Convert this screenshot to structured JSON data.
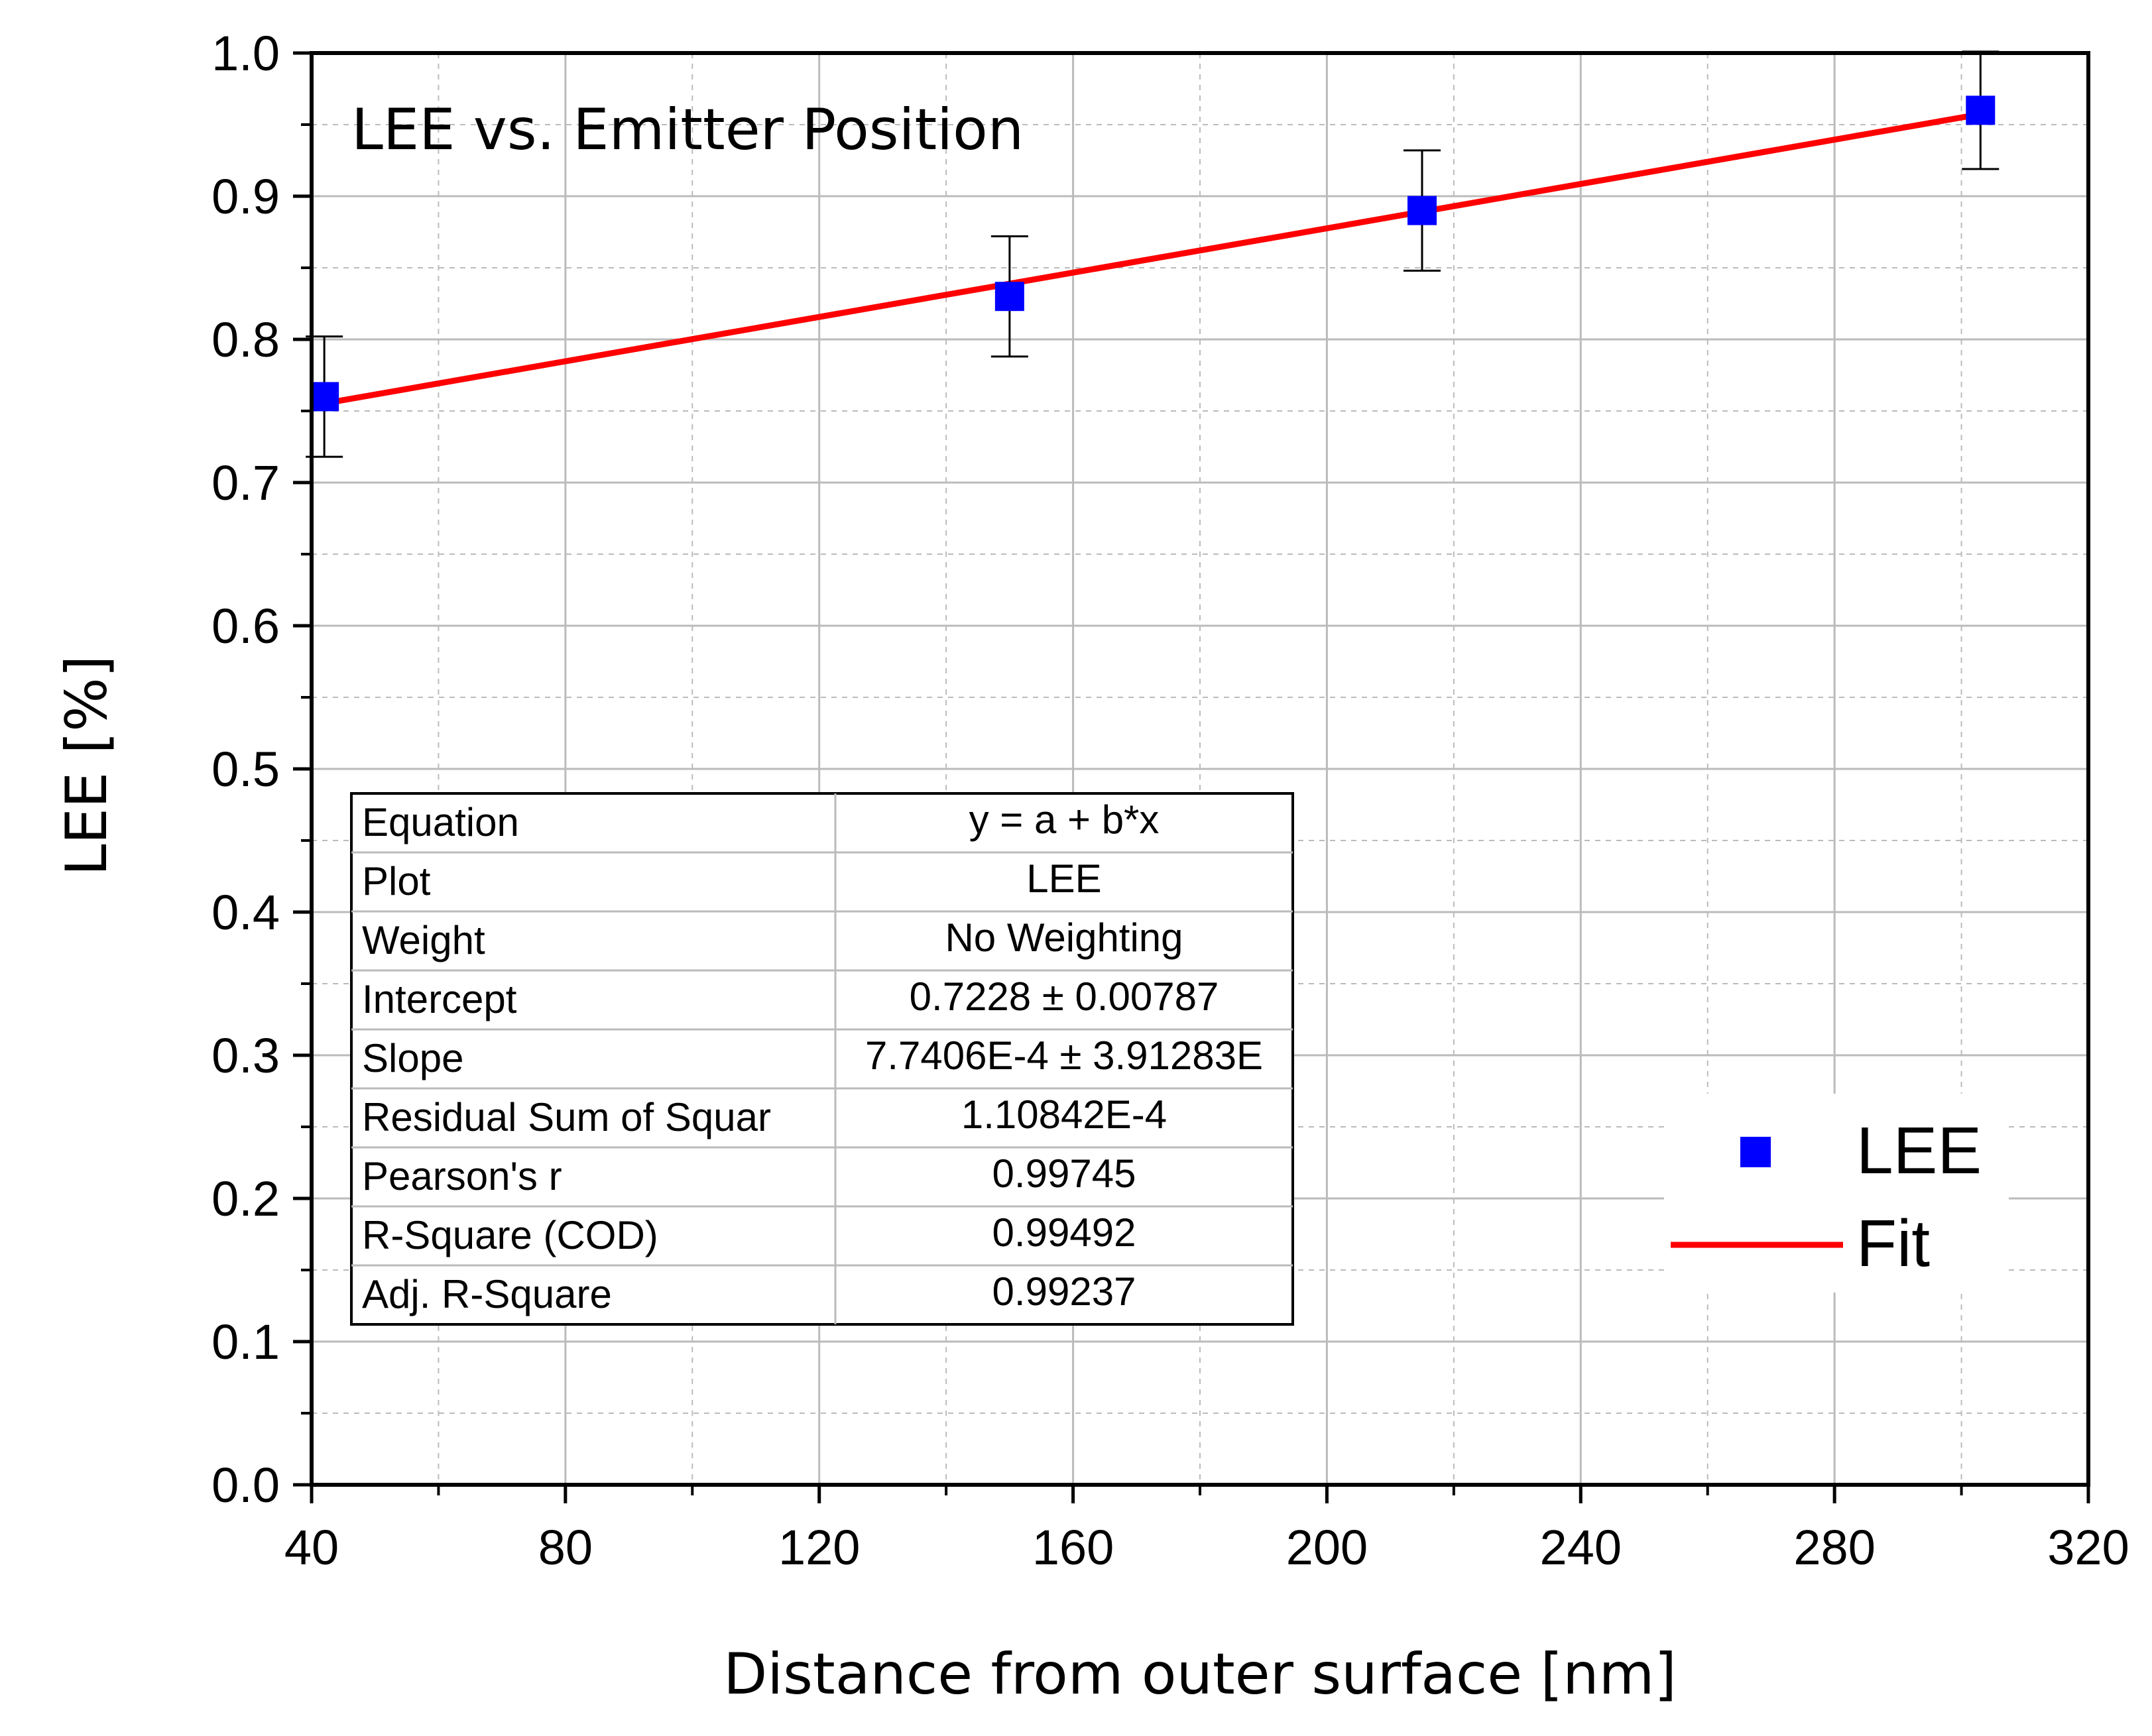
{
  "chart_data": {
    "type": "scatter",
    "title": "LEE vs. Emitter Position",
    "xlabel": "Distance from outer surface [nm]",
    "ylabel": "LEE [%]",
    "xlim": [
      40,
      320
    ],
    "ylim": [
      0.0,
      1.0
    ],
    "x_ticks": [
      "40",
      "80",
      "120",
      "160",
      "200",
      "240",
      "280",
      "320"
    ],
    "y_ticks": [
      "0.0",
      "0.1",
      "0.2",
      "0.3",
      "0.4",
      "0.5",
      "0.6",
      "0.7",
      "0.8",
      "0.9",
      "1.0"
    ],
    "grid": true,
    "colors": {
      "points": "#0000ff",
      "fit": "#ff0000",
      "grid": "#bbbbbb"
    },
    "series": [
      {
        "name": "LEE",
        "kind": "points-with-error",
        "x": [
          42,
          150,
          215,
          303
        ],
        "y": [
          0.76,
          0.83,
          0.89,
          0.96
        ],
        "err": [
          0.042,
          0.042,
          0.042,
          0.041
        ]
      },
      {
        "name": "Fit",
        "kind": "line",
        "x": [
          42,
          303
        ],
        "y": [
          0.7553,
          0.9573
        ]
      }
    ],
    "legend": {
      "position": "bottom-right",
      "entries": [
        "LEE",
        "Fit"
      ]
    },
    "stats_table": [
      {
        "label": "Equation",
        "value": "y = a + b*x"
      },
      {
        "label": "Plot",
        "value": "LEE"
      },
      {
        "label": "Weight",
        "value": "No Weighting"
      },
      {
        "label": "Intercept",
        "value": "0.7228 ± 0.00787"
      },
      {
        "label": "Slope",
        "value": "7.7406E-4 ± 3.91283E"
      },
      {
        "label": "Residual Sum of Squar",
        "value": "1.10842E-4"
      },
      {
        "label": "Pearson's r",
        "value": "0.99745"
      },
      {
        "label": "R-Square (COD)",
        "value": "0.99492"
      },
      {
        "label": "Adj. R-Square",
        "value": "0.99237"
      }
    ]
  }
}
